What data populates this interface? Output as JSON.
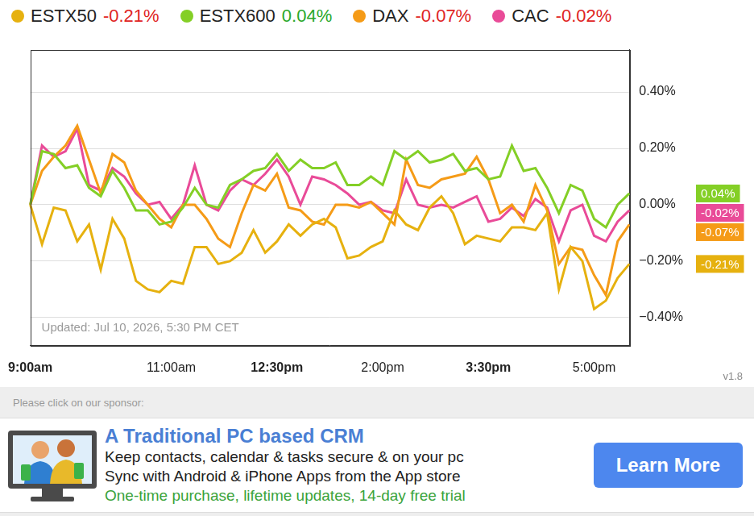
{
  "chart_data": {
    "type": "line",
    "categories": [
      "9:00am",
      null,
      null,
      null,
      null,
      null,
      null,
      null,
      null,
      null,
      null,
      null,
      "11:00am",
      null,
      null,
      null,
      null,
      null,
      null,
      null,
      null,
      "12:30pm",
      null,
      null,
      null,
      null,
      null,
      null,
      null,
      null,
      "2:00pm",
      null,
      null,
      null,
      null,
      null,
      null,
      null,
      null,
      "3:30pm",
      null,
      null,
      null,
      null,
      null,
      null,
      null,
      null,
      "5:00pm",
      null,
      null,
      null
    ],
    "series": [
      {
        "name": "ESTX50",
        "color": "#e6b10f",
        "change": {
          "value": -0.21,
          "label": "-0.21%"
        },
        "values": [
          0,
          -0.14,
          -0.01,
          -0.02,
          -0.13,
          -0.07,
          -0.23,
          -0.05,
          -0.12,
          -0.27,
          -0.3,
          -0.31,
          -0.27,
          -0.28,
          -0.15,
          -0.15,
          -0.21,
          -0.2,
          -0.17,
          -0.09,
          -0.17,
          -0.13,
          -0.07,
          -0.11,
          -0.07,
          -0.05,
          -0.08,
          -0.19,
          -0.18,
          -0.15,
          -0.13,
          -0.02,
          -0.07,
          -0.09,
          -0.01,
          0.03,
          -0.03,
          -0.14,
          -0.11,
          -0.12,
          -0.13,
          -0.08,
          -0.08,
          -0.09,
          -0.03,
          -0.3,
          -0.15,
          -0.2,
          -0.37,
          -0.34,
          -0.26,
          -0.21
        ]
      },
      {
        "name": "ESTX600",
        "color": "#84cf26",
        "change": {
          "value": 0.04,
          "label": "0.04%"
        },
        "values": [
          0,
          0.19,
          0.18,
          0.13,
          0.14,
          0.06,
          0.03,
          0.12,
          0.06,
          -0.02,
          -0.02,
          -0.07,
          -0.06,
          -0.01,
          0.06,
          0,
          -0.01,
          0.07,
          0.09,
          0.12,
          0.13,
          0.18,
          0.12,
          0.16,
          0.13,
          0.13,
          0.15,
          0.07,
          0.07,
          0.1,
          0.07,
          0.19,
          0.16,
          0.19,
          0.15,
          0.16,
          0.18,
          0.12,
          0.13,
          0.09,
          0.1,
          0.21,
          0.12,
          0.13,
          0.06,
          -0.03,
          0.07,
          0.05,
          -0.05,
          -0.08,
          0,
          0.04
        ]
      },
      {
        "name": "DAX",
        "color": "#f59b17",
        "change": {
          "value": -0.07,
          "label": "-0.07%"
        },
        "values": [
          0,
          0.12,
          0.17,
          0.21,
          0.28,
          0.16,
          0.04,
          0.18,
          0.15,
          0.05,
          0,
          -0.05,
          -0.08,
          0,
          0,
          -0.05,
          -0.12,
          -0.15,
          -0.03,
          0.07,
          0.05,
          0.11,
          -0.01,
          -0.02,
          -0.06,
          -0.07,
          0,
          0,
          -0.01,
          0.01,
          -0.03,
          -0.07,
          0.16,
          0.07,
          0.06,
          0.09,
          0.1,
          0.11,
          0.17,
          0.09,
          -0.03,
          0,
          -0.06,
          0.07,
          -0.02,
          -0.21,
          -0.15,
          -0.16,
          -0.25,
          -0.32,
          -0.13,
          -0.07
        ]
      },
      {
        "name": "CAC",
        "color": "#e94b98",
        "change": {
          "value": -0.02,
          "label": "-0.02%"
        },
        "values": [
          0,
          0.21,
          0.17,
          0.19,
          0.27,
          0.07,
          0.05,
          0.13,
          0.1,
          0.04,
          0,
          0.01,
          -0.05,
          0,
          0.14,
          0,
          -0.02,
          0.05,
          0.09,
          0.07,
          0.11,
          0.16,
          0.1,
          0,
          0.1,
          0.09,
          0.07,
          0.04,
          0,
          0.01,
          -0.02,
          -0.03,
          0.09,
          0,
          -0.01,
          0,
          -0.01,
          0.01,
          0.03,
          -0.06,
          -0.05,
          -0.01,
          -0.04,
          0.02,
          -0.01,
          -0.13,
          -0.02,
          0,
          -0.11,
          -0.13,
          -0.06,
          -0.02
        ]
      }
    ],
    "ylim": [
      -0.5,
      0.55
    ],
    "yticks": [
      {
        "value": -0.4,
        "label": "−0.40%"
      },
      {
        "value": -0.2,
        "label": "−0.20%"
      },
      {
        "value": 0,
        "label": "0.00%"
      },
      {
        "value": 0.2,
        "label": "0.20%"
      },
      {
        "value": 0.4,
        "label": "0.40%"
      }
    ],
    "grid": true,
    "legend": "top",
    "annotations": [
      "Updated: Jul 10, 2026, 5:30 PM CET"
    ]
  },
  "version": "v1.8",
  "sponsor": {
    "prompt": "Please click on our sponsor:",
    "title": "A Traditional PC based CRM",
    "lines": [
      "Keep contacts, calendar & tasks secure & on your pc",
      "Sync with Android & iPhone Apps from the App store"
    ],
    "offer": "One-time purchase, lifetime updates, 14-day free trial",
    "button": "Learn More"
  }
}
